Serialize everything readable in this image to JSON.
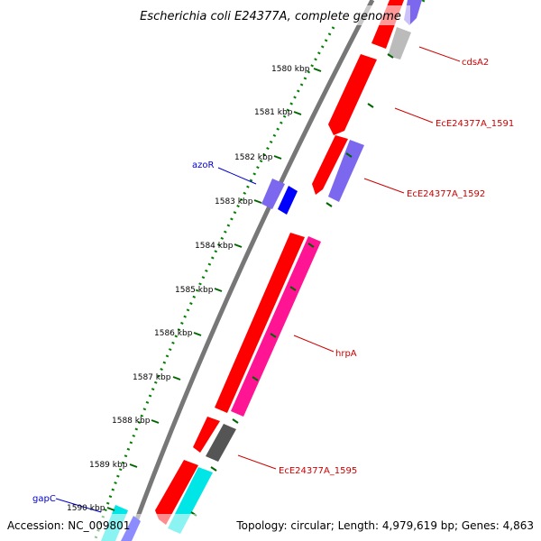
{
  "title": "Escherichia coli E24377A, complete genome",
  "footer": {
    "accession": "Accession: NC_009801",
    "topology": "Topology: circular; Length: 4,979,619 bp; Genes: 4,863"
  },
  "ticks": [
    "1580 kbp",
    "1581 kbp",
    "1582 kbp",
    "1583 kbp",
    "1584 kbp",
    "1585 kbp",
    "1586 kbp",
    "1587 kbp",
    "1588 kbp",
    "1589 kbp",
    "1590 kbp"
  ],
  "genes": [
    {
      "name": "cdsA2",
      "color": "#cc0000"
    },
    {
      "name": "EcE24377A_1591",
      "color": "#cc0000"
    },
    {
      "name": "EcE24377A_1592",
      "color": "#cc0000"
    },
    {
      "name": "hrpA",
      "color": "#cc0000"
    },
    {
      "name": "EcE24377A_1595",
      "color": "#cc0000"
    },
    {
      "name": "azoR",
      "color": "#0000cc"
    },
    {
      "name": "gapC",
      "color": "#0000cc"
    }
  ],
  "colors": {
    "cds_forward": "#ff0000",
    "cds_reverse": "#ff1493",
    "rna": "#7b68ee",
    "pseudo": "#bbbbbb",
    "other": "#555555",
    "cyan": "#00e5e5",
    "blue": "#0000ff",
    "backbone": "#777777",
    "tick_dots": "#008000"
  }
}
